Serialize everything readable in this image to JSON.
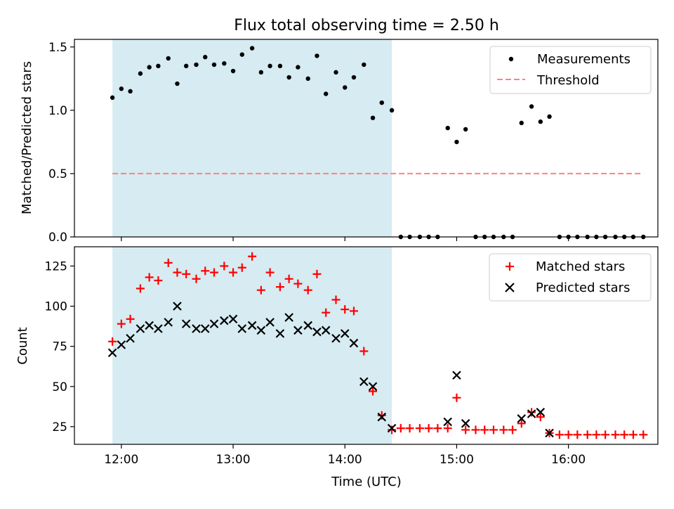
{
  "figure": {
    "title": "Flux total observing time = 2.50 h"
  },
  "chart_data": [
    {
      "type": "scatter",
      "ylabel": "Matched/Predicted stars",
      "ylim": [
        0,
        1.56
      ],
      "yticks": [
        0.0,
        0.5,
        1.0,
        1.5
      ],
      "ytick_labels": [
        "0.0",
        "0.5",
        "1.0",
        "1.5"
      ],
      "xlim": [
        11.58,
        16.8
      ],
      "xticks": [
        12,
        13,
        14,
        15,
        16
      ],
      "legend_position": "top-right",
      "shaded_region": {
        "x_start": 11.92,
        "x_end": 14.42,
        "color": "#add8e6"
      },
      "threshold": {
        "name": "Threshold",
        "y": 0.5,
        "x_start": 11.92,
        "x_end": 16.67,
        "color": "#ff8080"
      },
      "series": [
        {
          "name": "Measurements",
          "color": "#000000",
          "marker": "dot",
          "x": [
            11.92,
            12.0,
            12.08,
            12.17,
            12.25,
            12.33,
            12.42,
            12.5,
            12.58,
            12.67,
            12.75,
            12.83,
            12.92,
            13.0,
            13.08,
            13.17,
            13.25,
            13.33,
            13.42,
            13.5,
            13.58,
            13.67,
            13.75,
            13.83,
            13.92,
            14.0,
            14.08,
            14.17,
            14.25,
            14.33,
            14.42,
            14.5,
            14.58,
            14.67,
            14.75,
            14.83,
            14.92,
            15.0,
            15.08,
            15.17,
            15.25,
            15.33,
            15.42,
            15.5,
            15.58,
            15.67,
            15.75,
            15.83,
            15.92,
            16.0,
            16.08,
            16.17,
            16.25,
            16.33,
            16.42,
            16.5,
            16.58,
            16.67
          ],
          "y": [
            1.1,
            1.17,
            1.15,
            1.29,
            1.34,
            1.35,
            1.41,
            1.21,
            1.35,
            1.36,
            1.42,
            1.36,
            1.37,
            1.31,
            1.44,
            1.49,
            1.3,
            1.35,
            1.35,
            1.26,
            1.34,
            1.25,
            1.43,
            1.13,
            1.3,
            1.18,
            1.26,
            1.36,
            0.94,
            1.06,
            1.0,
            0.0,
            0.0,
            0.0,
            0.0,
            0.0,
            0.86,
            0.75,
            0.85,
            0.0,
            0.0,
            0.0,
            0.0,
            0.0,
            0.9,
            1.03,
            0.91,
            0.95,
            0.0,
            0.0,
            0.0,
            0.0,
            0.0,
            0.0,
            0.0,
            0.0,
            0.0,
            0.0
          ]
        }
      ],
      "legend": [
        "Measurements",
        "Threshold"
      ]
    },
    {
      "type": "scatter",
      "ylabel": "Count",
      "xlabel": "Time (UTC)",
      "ylim": [
        14,
        137
      ],
      "yticks": [
        25,
        50,
        75,
        100,
        125
      ],
      "ytick_labels": [
        "25",
        "50",
        "75",
        "100",
        "125"
      ],
      "xlim": [
        11.58,
        16.8
      ],
      "xticks": [
        12,
        13,
        14,
        15,
        16
      ],
      "xtick_labels": [
        "12:00",
        "13:00",
        "14:00",
        "15:00",
        "16:00"
      ],
      "legend_position": "top-right",
      "shaded_region": {
        "x_start": 11.92,
        "x_end": 14.42,
        "color": "#add8e6"
      },
      "series": [
        {
          "name": "Matched stars",
          "color": "#ff0000",
          "marker": "plus",
          "x": [
            11.92,
            12.0,
            12.08,
            12.17,
            12.25,
            12.33,
            12.42,
            12.5,
            12.58,
            12.67,
            12.75,
            12.83,
            12.92,
            13.0,
            13.08,
            13.17,
            13.25,
            13.33,
            13.42,
            13.5,
            13.58,
            13.67,
            13.75,
            13.83,
            13.92,
            14.0,
            14.08,
            14.17,
            14.25,
            14.33,
            14.42,
            14.5,
            14.58,
            14.67,
            14.75,
            14.83,
            14.92,
            15.0,
            15.08,
            15.17,
            15.25,
            15.33,
            15.42,
            15.5,
            15.58,
            15.67,
            15.75,
            15.83,
            15.92,
            16.0,
            16.08,
            16.17,
            16.25,
            16.33,
            16.42,
            16.5,
            16.58,
            16.67
          ],
          "y": [
            78,
            89,
            92,
            111,
            118,
            116,
            127,
            121,
            120,
            117,
            122,
            121,
            125,
            121,
            124,
            131,
            110,
            121,
            112,
            117,
            114,
            110,
            120,
            96,
            104,
            98,
            97,
            72,
            47,
            32,
            23,
            24,
            24,
            24,
            24,
            24,
            24,
            43,
            23,
            23,
            23,
            23,
            23,
            23,
            27,
            34,
            31,
            21,
            20,
            20,
            20,
            20,
            20,
            20,
            20,
            20,
            20,
            20
          ]
        },
        {
          "name": "Predicted stars",
          "color": "#000000",
          "marker": "x",
          "x": [
            11.92,
            12.0,
            12.08,
            12.17,
            12.25,
            12.33,
            12.42,
            12.5,
            12.58,
            12.67,
            12.75,
            12.83,
            12.92,
            13.0,
            13.08,
            13.17,
            13.25,
            13.33,
            13.42,
            13.5,
            13.58,
            13.67,
            13.75,
            13.83,
            13.92,
            14.0,
            14.08,
            14.17,
            14.25,
            14.33,
            14.42,
            14.92,
            15.0,
            15.08,
            15.58,
            15.67,
            15.75,
            15.83
          ],
          "y": [
            71,
            76,
            80,
            86,
            88,
            86,
            90,
            100,
            89,
            86,
            86,
            89,
            91,
            92,
            86,
            88,
            85,
            90,
            83,
            93,
            85,
            88,
            84,
            85,
            80,
            83,
            77,
            53,
            50,
            31,
            24,
            28,
            57,
            27,
            30,
            33,
            34,
            21
          ]
        }
      ],
      "legend": [
        "Matched stars",
        "Predicted stars"
      ]
    }
  ]
}
